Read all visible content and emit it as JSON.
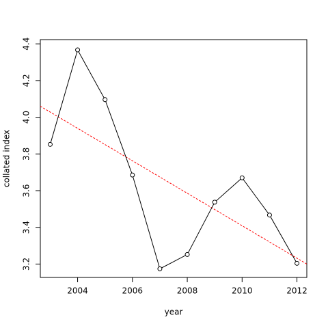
{
  "chart_data": {
    "type": "line",
    "x_label": "year",
    "y_label": "collated index",
    "x": [
      2003,
      2004,
      2005,
      2006,
      2007,
      2008,
      2009,
      2010,
      2011,
      2012
    ],
    "series": [
      {
        "color": "#000000",
        "values": [
          3.852,
          4.367,
          4.096,
          3.685,
          3.174,
          3.252,
          3.537,
          3.67,
          3.467,
          3.204
        ]
      }
    ],
    "trend_line": {
      "x": [
        2002.64,
        2012.36
      ],
      "values": [
        4.06,
        3.2
      ],
      "color": "#ff0000"
    },
    "xlim": [
      2002.64,
      2012.36
    ],
    "xticks": [
      2004,
      2006,
      2008,
      2010,
      2012
    ],
    "ylim": [
      3.127,
      4.423
    ],
    "yticks": [
      3.2,
      3.4,
      3.6,
      3.8,
      {
        "value": 4.0,
        "label": "4.0"
      },
      4.2,
      4.4
    ]
  }
}
